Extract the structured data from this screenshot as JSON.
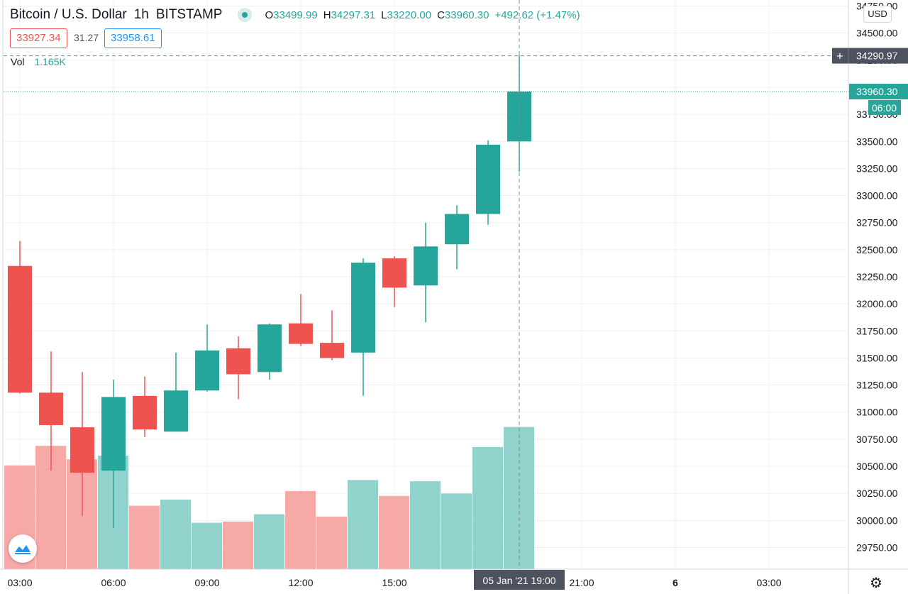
{
  "header": {
    "title": "Bitcoin / U.S. Dollar",
    "interval": "1h",
    "exchange": "BITSTAMP",
    "open_label": "O",
    "open": "33499.99",
    "high_label": "H",
    "high": "34297.31",
    "low_label": "L",
    "low": "33220.00",
    "close_label": "C",
    "close": "33960.30",
    "change": "+492.62 (+1.47%)"
  },
  "quote": {
    "sell": "33927.34",
    "spread": "31.27",
    "buy": "33958.61"
  },
  "volume": {
    "label": "Vol",
    "value": "1.165K"
  },
  "currency": "USD",
  "crosshair": {
    "price": "34290.97",
    "time": "05 Jan '21   19:00"
  },
  "last_price": {
    "value": "33960.30",
    "countdown": "06:00"
  },
  "colors": {
    "up": "#26a69a",
    "down": "#ef5350",
    "up_vol": "#92d2cc",
    "down_vol": "#f7a9a7"
  },
  "icons": {
    "logo": "tradingview-logo-icon",
    "settings": "gear-icon",
    "crosshair_add": "plus-icon"
  },
  "chart_data": {
    "type": "candlestick",
    "symbol": "Bitcoin / U.S. Dollar",
    "y_ticks": [
      29750,
      30000,
      30250,
      30500,
      30750,
      31000,
      31250,
      31500,
      31750,
      32000,
      32250,
      32500,
      32750,
      33000,
      33250,
      33500,
      33750,
      34000,
      34250,
      34500,
      34750
    ],
    "y_tick_labels": [
      "29750.00",
      "30000.00",
      "30250.00",
      "30500.00",
      "30750.00",
      "31000.00",
      "31250.00",
      "31500.00",
      "31750.00",
      "32000.00",
      "32250.00",
      "32500.00",
      "32750.00",
      "33000.00",
      "33250.00",
      "33500.00",
      "33750.00",
      "34000.00",
      "34250.00",
      "34500.00",
      "34750.00"
    ],
    "ylim": [
      29550,
      34760
    ],
    "x_ticks": [
      {
        "label": "03:00",
        "slot": 0
      },
      {
        "label": "06:00",
        "slot": 3
      },
      {
        "label": "09:00",
        "slot": 6
      },
      {
        "label": "12:00",
        "slot": 9
      },
      {
        "label": "15:00",
        "slot": 12
      },
      {
        "label": "21:00",
        "slot": 18
      },
      {
        "label": "6",
        "slot": 21
      },
      {
        "label": "03:00",
        "slot": 24
      }
    ],
    "grid": true,
    "candles": [
      {
        "time": "03:00",
        "open": 32350,
        "high": 32580,
        "low": 31170,
        "close": 31180,
        "volume": 0.85
      },
      {
        "time": "04:00",
        "open": 31180,
        "high": 31560,
        "low": 30460,
        "close": 30880,
        "volume": 1.01
      },
      {
        "time": "05:00",
        "open": 30860,
        "high": 31370,
        "low": 30040,
        "close": 30440,
        "volume": 0.9
      },
      {
        "time": "06:00",
        "open": 30460,
        "high": 31300,
        "low": 29930,
        "close": 31140,
        "volume": 0.93
      },
      {
        "time": "07:00",
        "open": 31150,
        "high": 31330,
        "low": 30770,
        "close": 30840,
        "volume": 0.52
      },
      {
        "time": "08:00",
        "open": 30820,
        "high": 31550,
        "low": 30820,
        "close": 31200,
        "volume": 0.57
      },
      {
        "time": "09:00",
        "open": 31200,
        "high": 31810,
        "low": 31190,
        "close": 31570,
        "volume": 0.38
      },
      {
        "time": "10:00",
        "open": 31590,
        "high": 31700,
        "low": 31120,
        "close": 31350,
        "volume": 0.39
      },
      {
        "time": "11:00",
        "open": 31370,
        "high": 31820,
        "low": 31300,
        "close": 31810,
        "volume": 0.45
      },
      {
        "time": "12:00",
        "open": 31820,
        "high": 32090,
        "low": 31610,
        "close": 31630,
        "volume": 0.64
      },
      {
        "time": "13:00",
        "open": 31640,
        "high": 31940,
        "low": 31480,
        "close": 31500,
        "volume": 0.43
      },
      {
        "time": "14:00",
        "open": 31550,
        "high": 32420,
        "low": 31150,
        "close": 32380,
        "volume": 0.73
      },
      {
        "time": "15:00",
        "open": 32420,
        "high": 32440,
        "low": 31970,
        "close": 32150,
        "volume": 0.6
      },
      {
        "time": "16:00",
        "open": 32170,
        "high": 32750,
        "low": 31830,
        "close": 32530,
        "volume": 0.72
      },
      {
        "time": "17:00",
        "open": 32550,
        "high": 32910,
        "low": 32320,
        "close": 32830,
        "volume": 0.62
      },
      {
        "time": "18:00",
        "open": 32830,
        "high": 33510,
        "low": 32730,
        "close": 33470,
        "volume": 1.0
      },
      {
        "time": "19:00",
        "open": 33499.99,
        "high": 34297.31,
        "low": 33220.0,
        "close": 33960.3,
        "volume": 1.165
      }
    ]
  }
}
